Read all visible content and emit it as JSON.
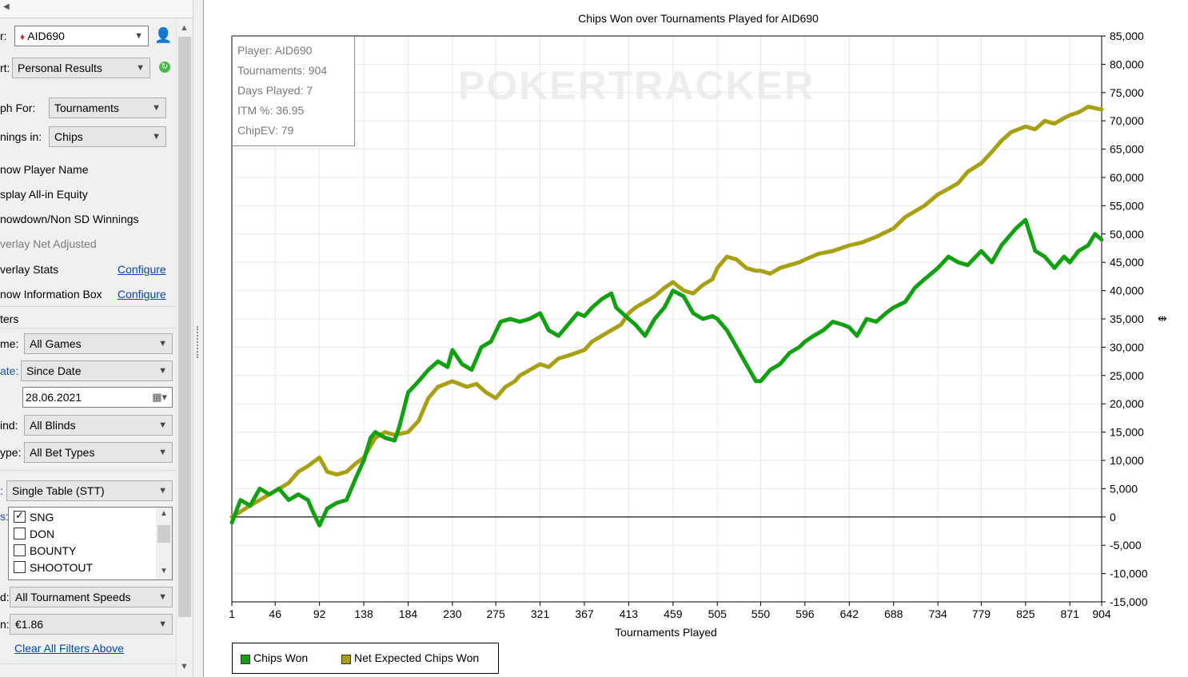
{
  "sidebar": {
    "player_label": "r:",
    "player_value": "AID690",
    "report_label": "rt:",
    "report_value": "Personal Results",
    "graph_for_label": "ph For:",
    "graph_for_value": "Tournaments",
    "winnings_label": "nings in:",
    "winnings_value": "Chips",
    "options": [
      {
        "label": "now Player Name",
        "enabled": true
      },
      {
        "label": "splay All-in Equity",
        "enabled": true
      },
      {
        "label": "nowdown/Non SD Winnings",
        "enabled": true
      },
      {
        "label": "verlay Net Adjusted",
        "enabled": false
      },
      {
        "label": "verlay Stats",
        "enabled": true,
        "link": "Configure"
      },
      {
        "label": "now Information Box",
        "enabled": true,
        "link": "Configure"
      }
    ],
    "filters_header": "ters",
    "game_label": "me:",
    "game_value": "All Games",
    "date_label": "ate:",
    "date_value": "Since Date",
    "date_input": "28.06.2021",
    "blind_label": "ind:",
    "blind_value": "All Blinds",
    "bettype_label": "ype:",
    "bettype_value": "All Bet Types",
    "table_label": ":",
    "table_value": "Single Table (STT)",
    "types_label": "s:",
    "types": [
      {
        "label": "SNG",
        "checked": true
      },
      {
        "label": "DON",
        "checked": false
      },
      {
        "label": "BOUNTY",
        "checked": false
      },
      {
        "label": "SHOOTOUT",
        "checked": false
      }
    ],
    "speed_label": "d:",
    "speed_value": "All Tournament Speeds",
    "buyin_label": "n:",
    "buyin_value": "€1.86",
    "clear_link": "Clear All Filters Above"
  },
  "info_box": [
    "Player: AID690",
    "Tournaments: 904",
    "Days Played: 7",
    "ITM %: 36.95",
    "ChipEV: 79"
  ],
  "watermark": "POKERTRACKER",
  "colors": {
    "chips_won": "#11a011",
    "net_expected": "#a8a014",
    "axis": "#000000",
    "grid": "#e8e8e8"
  },
  "chart_data": {
    "type": "line",
    "title": "Chips Won over Tournaments Played for AID690",
    "xlabel": "Tournaments Played",
    "ylabel": "",
    "xlim": [
      1,
      904
    ],
    "ylim": [
      -15000,
      85000
    ],
    "x_ticks": [
      1,
      46,
      92,
      138,
      184,
      230,
      275,
      321,
      367,
      413,
      459,
      505,
      550,
      596,
      642,
      688,
      734,
      779,
      825,
      871,
      904
    ],
    "y_ticks": [
      "85,000",
      "80,000",
      "75,000",
      "70,000",
      "65,000",
      "60,000",
      "55,000",
      "50,000",
      "45,000",
      "40,000",
      "35,000",
      "30,000",
      "25,000",
      "20,000",
      "15,000",
      "10,000",
      "5,000",
      "0",
      "-5,000",
      "-10,000",
      "-15,000"
    ],
    "y_tick_values": [
      85000,
      80000,
      75000,
      70000,
      65000,
      60000,
      55000,
      50000,
      45000,
      40000,
      35000,
      30000,
      25000,
      20000,
      15000,
      10000,
      5000,
      0,
      -5000,
      -10000,
      -15000
    ],
    "grid": true,
    "legend_position": "bottom-left",
    "series": [
      {
        "name": "Chips Won",
        "x": [
          1,
          10,
          20,
          30,
          40,
          50,
          60,
          70,
          80,
          85,
          92,
          100,
          110,
          120,
          130,
          138,
          145,
          150,
          160,
          170,
          175,
          184,
          195,
          205,
          215,
          225,
          230,
          240,
          250,
          260,
          270,
          280,
          290,
          300,
          310,
          321,
          330,
          340,
          350,
          360,
          367,
          375,
          385,
          395,
          400,
          413,
          420,
          430,
          440,
          450,
          459,
          470,
          480,
          490,
          500,
          505,
          515,
          525,
          535,
          545,
          550,
          560,
          570,
          580,
          590,
          596,
          605,
          615,
          625,
          635,
          642,
          650,
          660,
          670,
          680,
          688,
          700,
          710,
          720,
          734,
          745,
          755,
          765,
          779,
          790,
          800,
          815,
          825,
          835,
          845,
          855,
          865,
          871,
          880,
          890,
          897,
          904
        ],
        "y": [
          -1000,
          3000,
          2000,
          5000,
          4000,
          5000,
          3000,
          4000,
          3000,
          1000,
          -1500,
          1500,
          2500,
          3000,
          7000,
          10000,
          14000,
          15000,
          14000,
          13500,
          16000,
          22000,
          24000,
          26000,
          27500,
          26500,
          29500,
          27000,
          26000,
          30000,
          31000,
          34500,
          35000,
          34500,
          35000,
          36000,
          33000,
          32000,
          34000,
          36000,
          35500,
          37000,
          38500,
          39500,
          37000,
          35000,
          34000,
          32000,
          35000,
          37000,
          40000,
          39000,
          36000,
          35000,
          35500,
          35000,
          33000,
          30000,
          27000,
          24000,
          24000,
          26000,
          27000,
          29000,
          30000,
          31000,
          32000,
          33000,
          34500,
          34000,
          33500,
          32000,
          35000,
          34500,
          36000,
          37000,
          38000,
          40500,
          42000,
          44000,
          46000,
          45000,
          44500,
          47000,
          45000,
          48000,
          51000,
          52500,
          47000,
          46000,
          44000,
          46000,
          45000,
          47000,
          48000,
          50000,
          49000
        ]
      },
      {
        "name": "Net Expected Chips Won",
        "x": [
          1,
          20,
          40,
          60,
          70,
          80,
          92,
          100,
          110,
          120,
          130,
          138,
          150,
          160,
          170,
          184,
          195,
          205,
          215,
          230,
          245,
          255,
          265,
          275,
          285,
          295,
          300,
          321,
          330,
          340,
          350,
          367,
          375,
          385,
          395,
          405,
          413,
          420,
          430,
          440,
          450,
          459,
          470,
          480,
          490,
          500,
          505,
          515,
          525,
          535,
          545,
          550,
          560,
          570,
          580,
          590,
          596,
          610,
          625,
          642,
          655,
          670,
          688,
          700,
          710,
          720,
          734,
          745,
          755,
          765,
          779,
          790,
          800,
          810,
          825,
          835,
          845,
          855,
          865,
          871,
          880,
          890,
          904
        ],
        "y": [
          0,
          2000,
          4000,
          6000,
          8000,
          9000,
          10500,
          8000,
          7500,
          8000,
          9500,
          10500,
          14000,
          15000,
          14500,
          15000,
          17000,
          21000,
          23000,
          24000,
          23000,
          23500,
          22000,
          21000,
          23000,
          24000,
          25000,
          27000,
          26500,
          28000,
          28500,
          29500,
          31000,
          32000,
          33000,
          34000,
          36000,
          37000,
          38000,
          39000,
          40500,
          41500,
          40000,
          39500,
          41000,
          42000,
          44000,
          46000,
          45500,
          44000,
          43500,
          43500,
          43000,
          44000,
          44500,
          45000,
          45500,
          46500,
          47000,
          48000,
          48500,
          49500,
          51000,
          53000,
          54000,
          55000,
          57000,
          58000,
          59000,
          61000,
          62500,
          64500,
          66500,
          68000,
          69000,
          68500,
          70000,
          69500,
          70500,
          71000,
          71500,
          72500,
          72000
        ]
      }
    ]
  }
}
